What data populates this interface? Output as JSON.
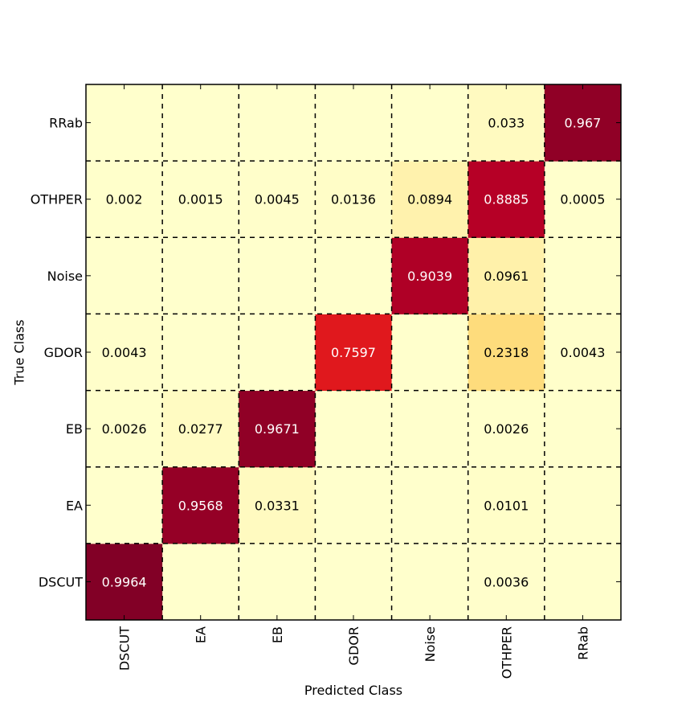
{
  "chart_data": {
    "type": "heatmap",
    "title": "",
    "xlabel": "Predicted Class",
    "ylabel": "True Class",
    "x_categories": [
      "DSCUT",
      "EA",
      "EB",
      "GDOR",
      "Noise",
      "OTHPER",
      "RRab"
    ],
    "y_categories": [
      "DSCUT",
      "EA",
      "EB",
      "GDOR",
      "Noise",
      "OTHPER",
      "RRab"
    ],
    "matrix": [
      [
        0.9964,
        null,
        null,
        null,
        null,
        0.0036,
        null
      ],
      [
        null,
        0.9568,
        0.0331,
        null,
        null,
        0.0101,
        null
      ],
      [
        0.0026,
        0.0277,
        0.9671,
        null,
        null,
        0.0026,
        null
      ],
      [
        0.0043,
        null,
        null,
        0.7597,
        null,
        0.2318,
        0.0043
      ],
      [
        null,
        null,
        null,
        null,
        0.9039,
        0.0961,
        null
      ],
      [
        0.002,
        0.0015,
        0.0045,
        0.0136,
        0.0894,
        0.8885,
        0.0005
      ],
      [
        null,
        null,
        null,
        null,
        null,
        0.033,
        0.967
      ]
    ],
    "labels": [
      [
        "0.9964",
        "",
        "",
        "",
        "",
        "0.0036",
        ""
      ],
      [
        "",
        "0.9568",
        "0.0331",
        "",
        "",
        "0.0101",
        ""
      ],
      [
        "0.0026",
        "0.0277",
        "0.9671",
        "",
        "",
        "0.0026",
        ""
      ],
      [
        "0.0043",
        "",
        "",
        "0.7597",
        "",
        "0.2318",
        "0.0043"
      ],
      [
        "",
        "",
        "",
        "",
        "0.9039",
        "0.0961",
        ""
      ],
      [
        "0.002",
        "0.0015",
        "0.0045",
        "0.0136",
        "0.0894",
        "0.8885",
        "0.0005"
      ],
      [
        "",
        "",
        "",
        "",
        "",
        "0.033",
        "0.967"
      ]
    ],
    "colormap": "YlOrRd",
    "vrange": [
      0,
      1
    ],
    "grid": true,
    "grid_style": "dashed",
    "colors": {
      "low": "#ffffcc",
      "high": "#800026",
      "text_dark": "#000000",
      "text_light": "#ffffff"
    }
  }
}
